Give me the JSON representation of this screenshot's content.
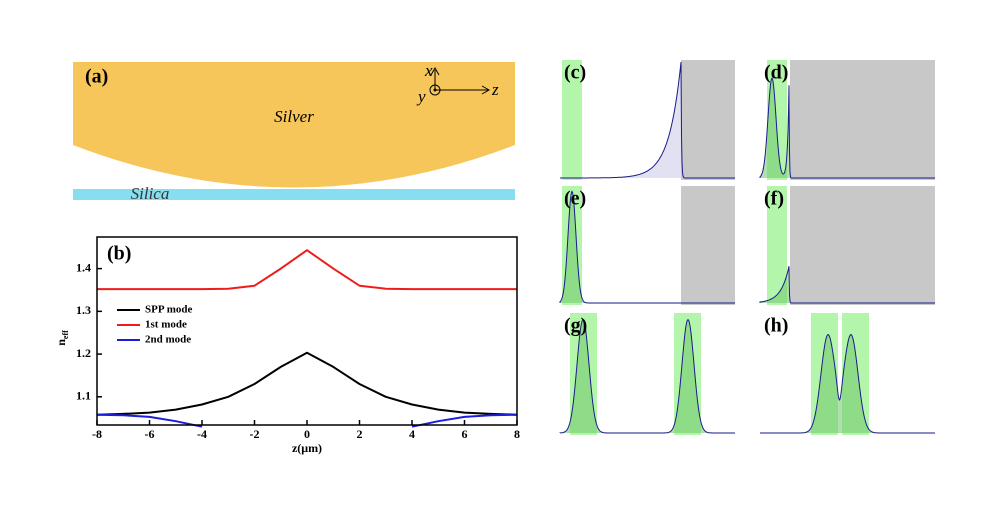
{
  "panel_a": {
    "label": "(a)",
    "metal": "Silver",
    "substrate": "Silica",
    "axis_x": "x",
    "axis_y": "y",
    "axis_z": "z"
  },
  "chart_data": {
    "type": "line",
    "title": "(b)",
    "xlabel": "z(μm)",
    "ylabel": "n",
    "ylabel_sub": "eff",
    "x": [
      -8,
      -7,
      -6,
      -5,
      -4,
      -3,
      -2,
      -1,
      0,
      1,
      2,
      3,
      4,
      5,
      6,
      7,
      8
    ],
    "series": [
      {
        "name": "SPP mode",
        "color": "#000000",
        "values": [
          1.058,
          1.06,
          1.063,
          1.07,
          1.082,
          1.1,
          1.13,
          1.17,
          1.203,
          1.17,
          1.13,
          1.1,
          1.082,
          1.07,
          1.063,
          1.06,
          1.058
        ]
      },
      {
        "name": "1st mode",
        "color": "#ee1c1c",
        "values": [
          1.352,
          1.352,
          1.352,
          1.352,
          1.352,
          1.353,
          1.36,
          1.4,
          1.443,
          1.4,
          1.36,
          1.353,
          1.352,
          1.352,
          1.352,
          1.352,
          1.352
        ]
      },
      {
        "name": "2nd mode",
        "color": "#1c1cdd",
        "values": [
          1.058,
          1.057,
          1.053,
          1.043,
          1.03,
          null,
          null,
          null,
          null,
          null,
          null,
          null,
          1.03,
          1.043,
          1.053,
          1.057,
          1.058
        ]
      }
    ],
    "xlim": [
      -8,
      8
    ],
    "ylim": [
      1.034,
      1.474
    ],
    "xticks": [
      -8,
      -6,
      -4,
      -2,
      0,
      2,
      4,
      6,
      8
    ],
    "yticks": [
      1.1,
      1.2,
      1.3,
      1.4
    ]
  },
  "panels": [
    {
      "label": "(c)"
    },
    {
      "label": "(d)"
    },
    {
      "label": "(e)"
    },
    {
      "label": "(f)"
    },
    {
      "label": "(g)"
    },
    {
      "label": "(h)"
    }
  ]
}
